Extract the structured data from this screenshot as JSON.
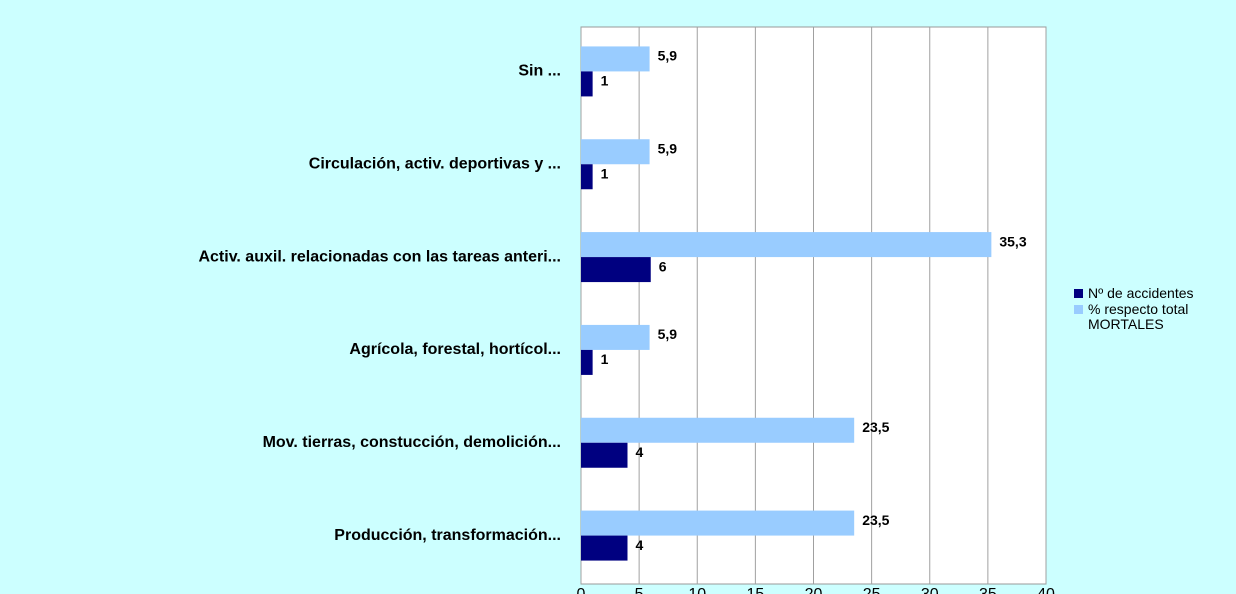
{
  "chart_data": {
    "type": "bar",
    "orientation": "horizontal",
    "categories": [
      "Sin ...",
      "Circulación, activ. deportivas y ...",
      "Activ. auxil. relacionadas con las tareas anteri...",
      "Agrícola, forestal, hortícol...",
      "Mov. tierras, constucción, demolición...",
      "Producción, transformación..."
    ],
    "series": [
      {
        "name": "Nº de accidentes",
        "color": "#000080",
        "values": [
          1,
          1,
          6,
          1,
          4,
          4
        ]
      },
      {
        "name": "% respecto total MORTALES",
        "color": "#99ccff",
        "values": [
          5.9,
          5.9,
          35.3,
          5.9,
          23.5,
          23.5
        ],
        "value_labels": [
          "5,9",
          "5,9",
          "35,3",
          "5,9",
          "23,5",
          "23,5"
        ]
      }
    ],
    "xlim": [
      0,
      40
    ],
    "xticks": [
      0,
      5,
      10,
      15,
      20,
      25,
      30,
      35,
      40
    ],
    "grid": true,
    "legend": "right"
  }
}
